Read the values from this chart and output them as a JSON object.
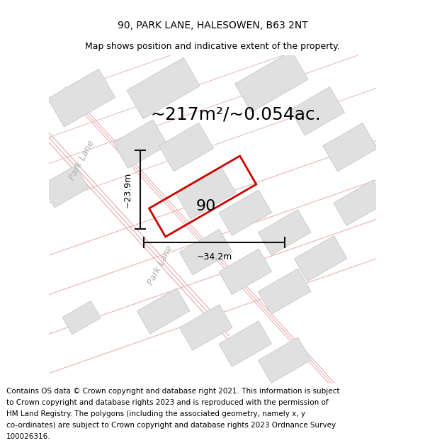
{
  "title": "90, PARK LANE, HALESOWEN, B63 2NT",
  "subtitle": "Map shows position and indicative extent of the property.",
  "area_text": "~217m²/~0.054ac.",
  "property_number": "90",
  "width_label": "~34.2m",
  "height_label": "~23.9m",
  "street_label_upper": "Park Lane",
  "street_label_lower": "Park Lane",
  "footer_lines": [
    "Contains OS data © Crown copyright and database right 2021. This information is subject",
    "to Crown copyright and database rights 2023 and is reproduced with the permission of",
    "HM Land Registry. The polygons (including the associated geometry, namely x, y",
    "co-ordinates) are subject to Crown copyright and database rights 2023 Ordnance Survey",
    "100026316."
  ],
  "bg_color": "#f5f5f5",
  "road_color": "#e8a8a8",
  "building_color": "#e0e0e0",
  "building_edge_color": "#cccccc",
  "property_color": "#cc0000",
  "dim_color": "#111111",
  "street_label_color": "#b0b0b0",
  "title_fontsize": 10,
  "subtitle_fontsize": 9,
  "area_fontsize": 18,
  "prop_num_fontsize": 16,
  "dim_fontsize": 9,
  "street_fontsize": 9,
  "footer_fontsize": 7.5
}
